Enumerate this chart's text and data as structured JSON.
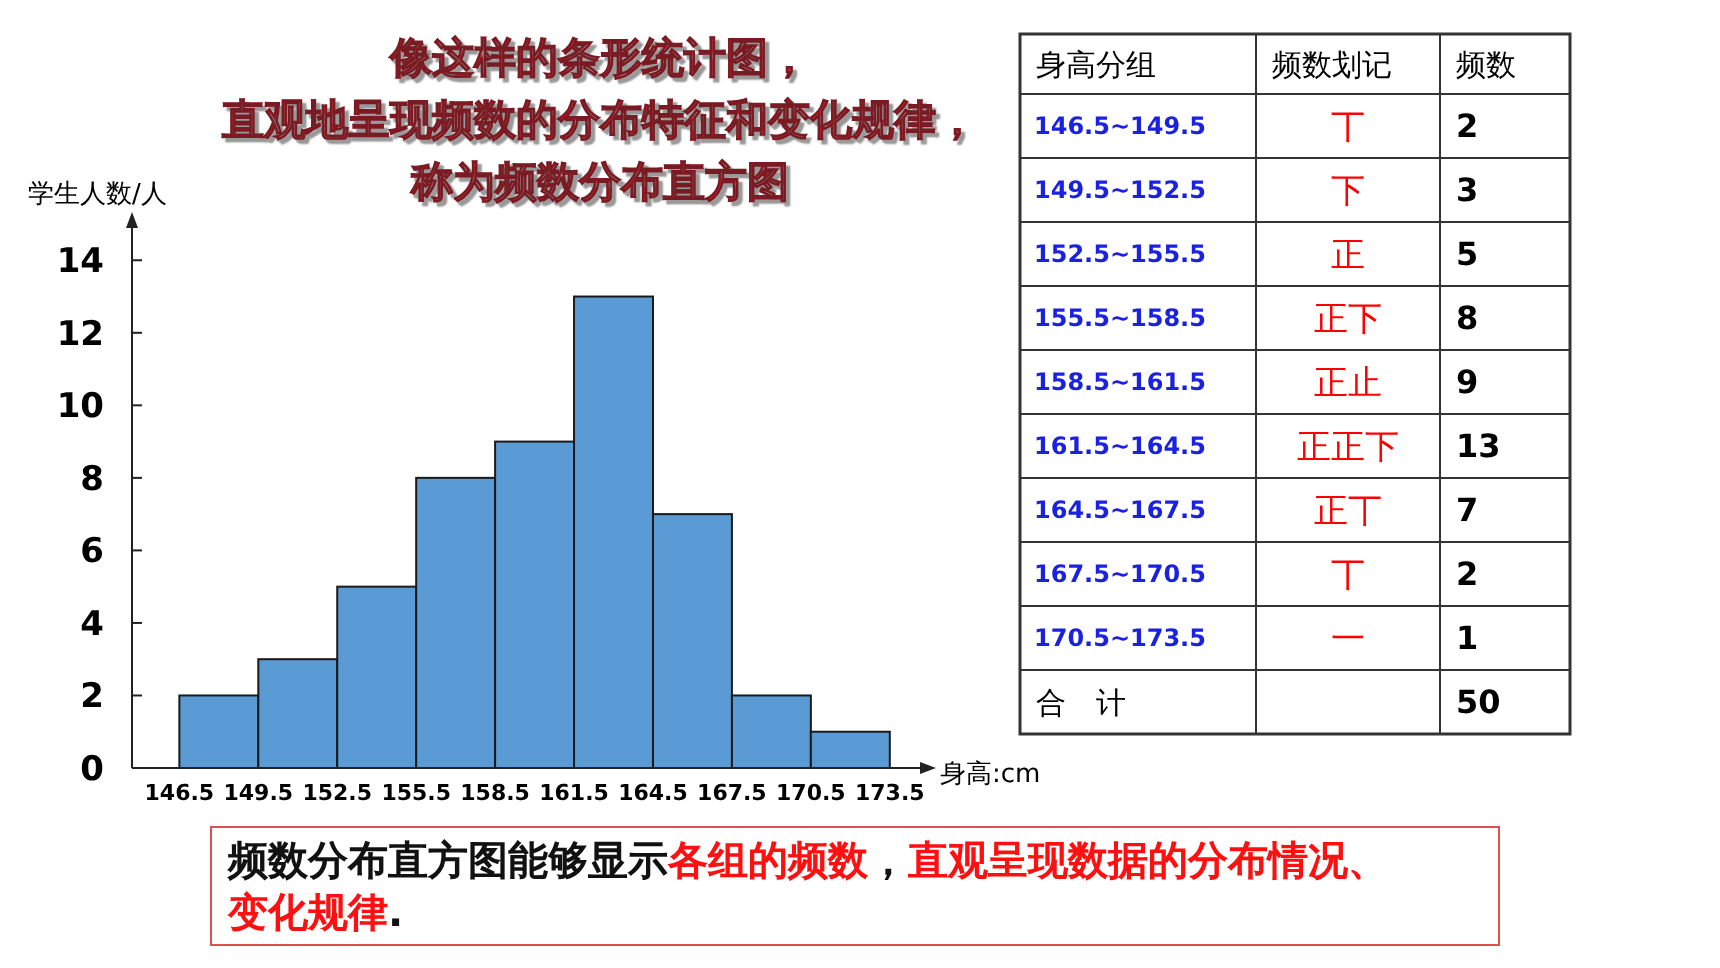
{
  "chart_data": [
    {
      "type": "histogram",
      "title": "像这样的条形统计图，直观地呈现频数的分布特征和变化规律，称为频数分布直方图",
      "xlabel": "身高:cm",
      "ylabel": "学生人数/人",
      "bins": [
        146.5,
        149.5,
        152.5,
        155.5,
        158.5,
        161.5,
        164.5,
        167.5,
        170.5,
        173.5
      ],
      "values": [
        2,
        3,
        5,
        8,
        9,
        13,
        7,
        2,
        1
      ],
      "color": "#5b9bd5",
      "xlim": [
        144.7,
        174.8
      ],
      "xticks": [
        146.5,
        149.5,
        152.5,
        155.5,
        158.5,
        161.5,
        164.5,
        167.5,
        170.5,
        173.5
      ],
      "ylim": [
        0,
        15
      ],
      "yticks": [
        0,
        2,
        4,
        6,
        8,
        10,
        12,
        14
      ],
      "grid": false,
      "annotations": [
        "频数分布直方图能够显示",
        "各组的频数",
        "，",
        "直观呈现数据的分布情况、变化规律",
        "."
      ]
    },
    {
      "type": "other",
      "categories": [
        "146.5~149.5",
        "149.5~152.5",
        "152.5~155.5",
        "155.5~158.5",
        "158.5~161.5",
        "161.5~164.5",
        "164.5~167.5",
        "167.5~170.5",
        "170.5~173.5"
      ],
      "values": [
        2,
        3,
        5,
        8,
        9,
        13,
        7,
        2,
        1
      ],
      "data_labels": true,
      "annotations": [
        "身高分组",
        "频数划记",
        "频数",
        "丅",
        "下",
        "正",
        "正下",
        "正止",
        "正正下",
        "正丅",
        "丅",
        "一",
        "合　计",
        "50"
      ]
    }
  ]
}
